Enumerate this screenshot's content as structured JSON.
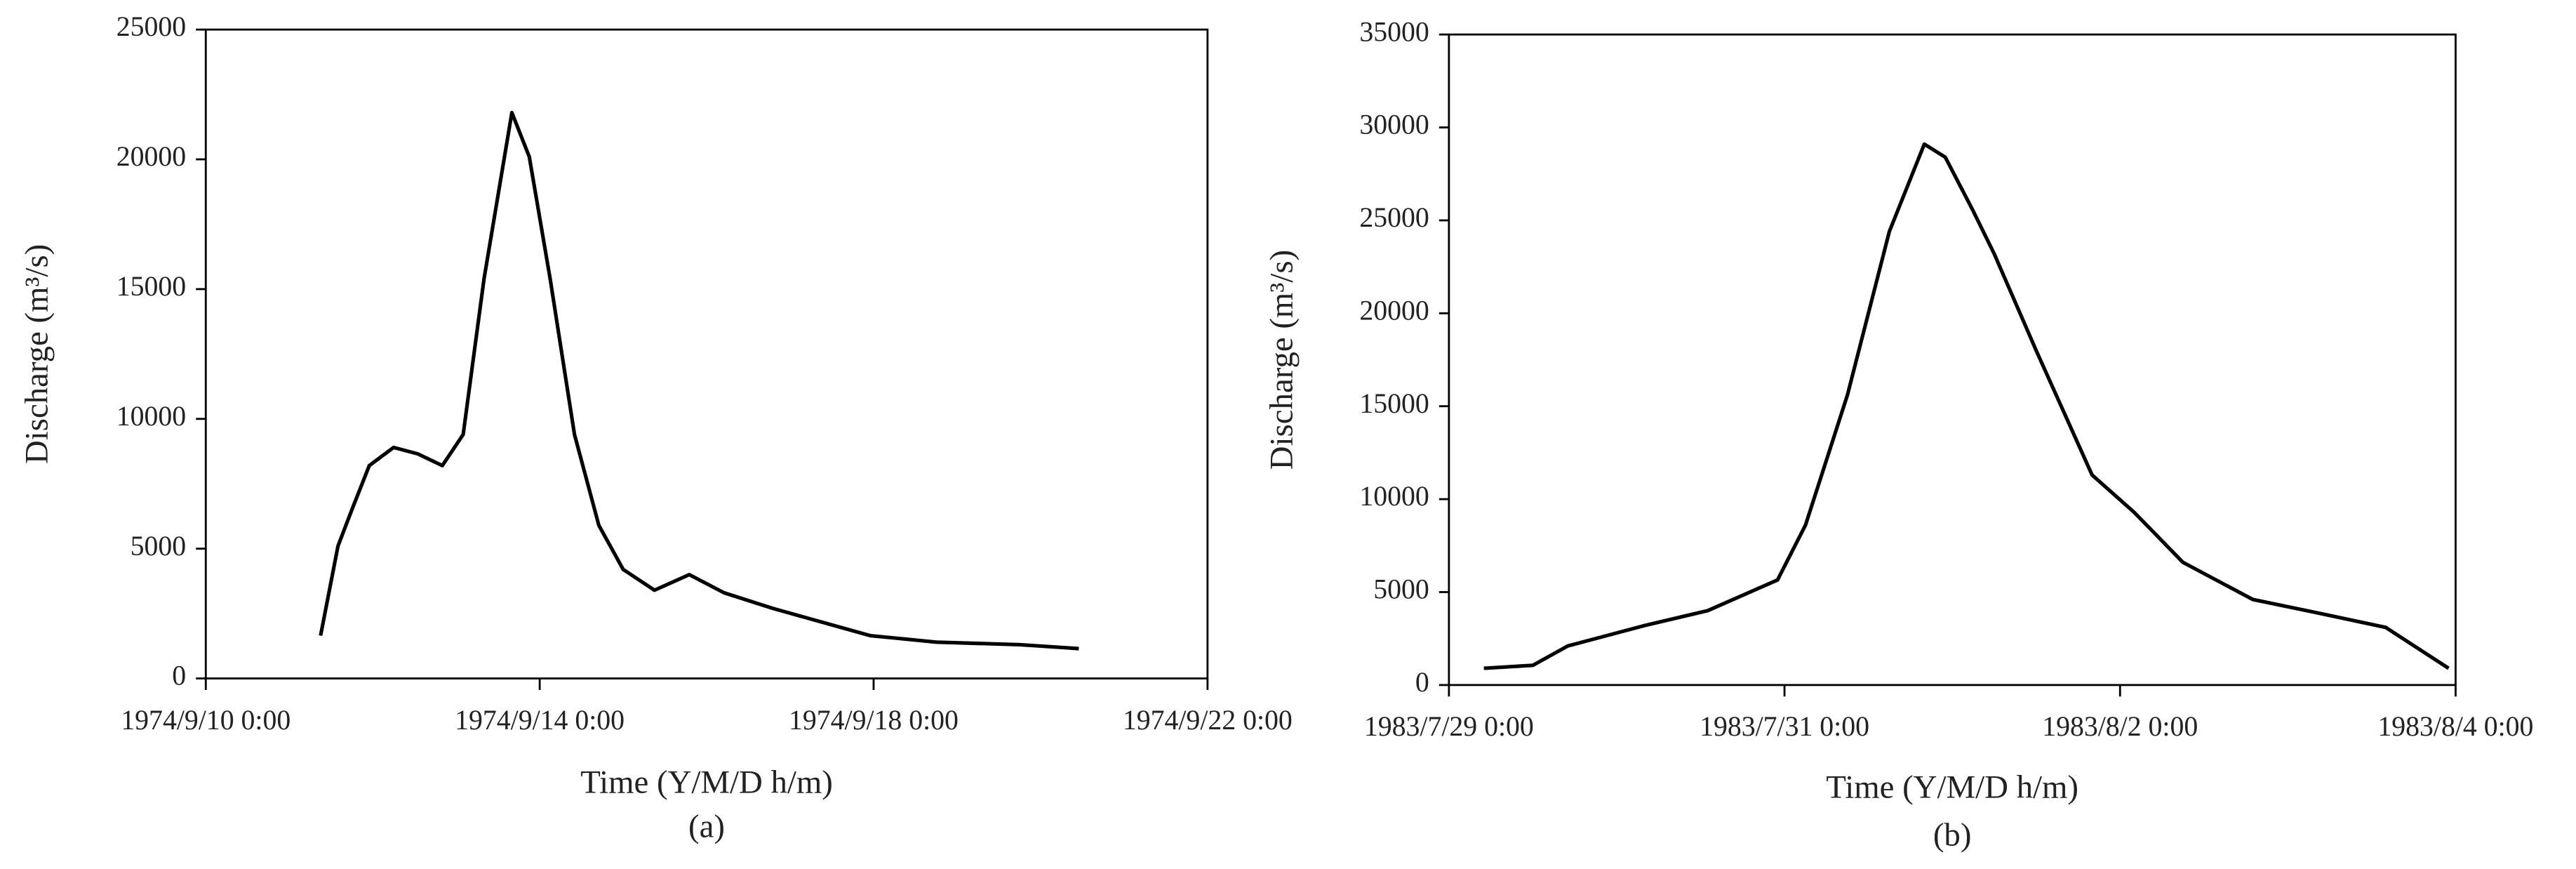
{
  "chart_data": [
    {
      "type": "line",
      "caption": "(a)",
      "x_label": "Time (Y/M/D h/m)",
      "y_label": "Discharge (m³/s)",
      "xlim": [
        "1974/9/10 0:00",
        "1974/9/22 0:00"
      ],
      "xticks": [
        "1974/9/10 0:00",
        "1974/9/14 0:00",
        "1974/9/18 0:00",
        "1974/9/22 0:00"
      ],
      "ylim": [
        0,
        25000
      ],
      "yticks": [
        0,
        5000,
        10000,
        15000,
        20000,
        25000
      ],
      "series": [
        {
          "color": "#000000",
          "x": [
            "1974/9/11 9:00",
            "1974/9/11 14:00",
            "1974/9/11 18:00",
            "1974/9/11 23:00",
            "1974/9/12 6:00",
            "1974/9/12 13:00",
            "1974/9/12 20:00",
            "1974/9/13 2:00",
            "1974/9/13 8:00",
            "1974/9/13 16:00",
            "1974/9/13 21:00",
            "1974/9/14 3:00",
            "1974/9/14 10:00",
            "1974/9/14 17:00",
            "1974/9/15 0:00",
            "1974/9/15 9:00",
            "1974/9/15 19:00",
            "1974/9/16 5:00",
            "1974/9/16 19:00",
            "1974/9/17 23:00",
            "1974/9/18 18:00",
            "1974/9/19 18:00",
            "1974/9/20 11:00"
          ],
          "values": [
            1650,
            5100,
            6500,
            8200,
            8900,
            8650,
            8200,
            9400,
            15400,
            21800,
            20100,
            15400,
            9400,
            5900,
            4200,
            3400,
            4000,
            3300,
            2700,
            1650,
            1400,
            1300,
            1150
          ]
        }
      ]
    },
    {
      "type": "line",
      "caption": "(b)",
      "x_label": "Time (Y/M/D h/m)",
      "y_label": "Discharge (m³/s)",
      "xlim": [
        "1983/7/29 0:00",
        "1983/8/4 0:00"
      ],
      "xticks": [
        "1983/7/29 0:00",
        "1983/7/31 0:00",
        "1983/8/2 0:00",
        "1983/8/4 0:00"
      ],
      "ylim": [
        0,
        35000
      ],
      "yticks": [
        0,
        5000,
        10000,
        15000,
        20000,
        25000,
        30000,
        35000
      ],
      "series": [
        {
          "color": "#000000",
          "x": [
            "1983/7/29 5:00",
            "1983/7/29 12:00",
            "1983/7/29 17:00",
            "1983/7/30 4:00",
            "1983/7/30 13:00",
            "1983/7/30 23:00",
            "1983/7/31 3:00",
            "1983/7/31 9:00",
            "1983/7/31 15:00",
            "1983/7/31 20:00",
            "1983/7/31 23:00",
            "1983/8/1 3:00",
            "1983/8/1 6:00",
            "1983/8/1 12:00",
            "1983/8/1 20:00",
            "1983/8/2 2:00",
            "1983/8/2 9:00",
            "1983/8/2 19:00",
            "1983/8/3 4:00",
            "1983/8/3 14:00",
            "1983/8/3 23:00"
          ],
          "values": [
            900,
            1060,
            2100,
            3200,
            4000,
            5650,
            8600,
            15600,
            24400,
            29100,
            28400,
            25500,
            23200,
            18000,
            11300,
            9300,
            6600,
            4600,
            3900,
            3100,
            900
          ]
        }
      ]
    }
  ]
}
